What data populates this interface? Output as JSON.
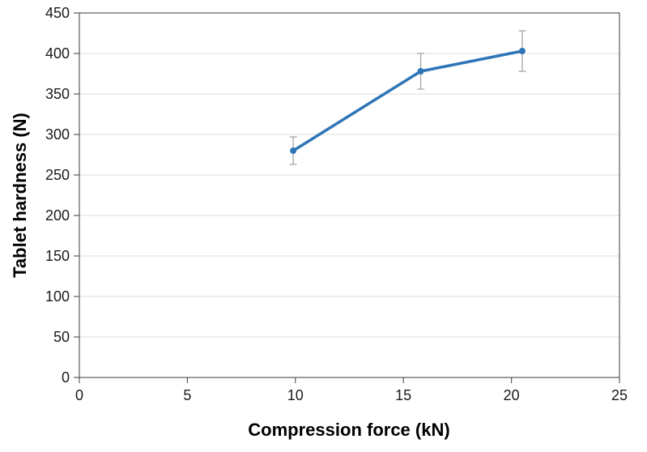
{
  "chart_data": {
    "type": "line",
    "title": "",
    "xlabel": "Compression force (kN)",
    "ylabel": "Tablet hardness (N)",
    "xlim": [
      0,
      25
    ],
    "ylim": [
      0,
      450
    ],
    "xticks": [
      0,
      5,
      10,
      15,
      20,
      25
    ],
    "yticks": [
      0,
      50,
      100,
      150,
      200,
      250,
      300,
      350,
      400,
      450
    ],
    "grid": "horizontal",
    "legend": false,
    "series": [
      {
        "name": "Tablet hardness",
        "x": [
          9.9,
          15.8,
          20.5
        ],
        "y": [
          280,
          378,
          403
        ],
        "y_err": [
          17,
          22,
          25
        ],
        "color": "#2E75B6",
        "marker": "circle"
      }
    ]
  },
  "colors": {
    "line": "#2E75B6",
    "error_bar": "#A6A6A6",
    "axis": "#595959",
    "gridline": "#DCDCDC",
    "tick_text": "#1a1a1a",
    "title_text": "#000000",
    "background": "#FFFFFF"
  }
}
